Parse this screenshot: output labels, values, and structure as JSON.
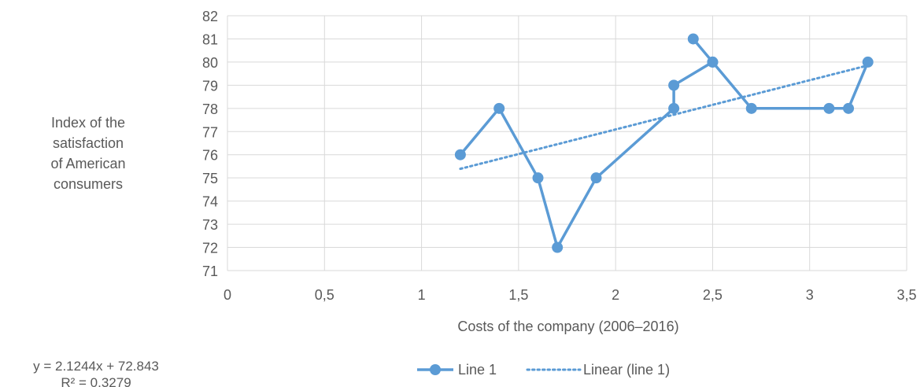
{
  "chart_data": {
    "type": "line",
    "ylabel_lines": [
      "Index of the",
      "satisfaction",
      "of American",
      "consumers"
    ],
    "xlabel": "Costs of the company (2006–2016)",
    "xlim": [
      0,
      3.5
    ],
    "ylim": [
      71,
      82
    ],
    "x_ticks": [
      0,
      0.5,
      1,
      1.5,
      2,
      2.5,
      3,
      3.5
    ],
    "x_tick_labels": [
      "0",
      "0,5",
      "1",
      "1,5",
      "2",
      "2,5",
      "3",
      "3,5"
    ],
    "y_ticks": [
      71,
      72,
      73,
      74,
      75,
      76,
      77,
      78,
      79,
      80,
      81,
      82
    ],
    "y_tick_labels": [
      "71",
      "72",
      "73",
      "74",
      "75",
      "76",
      "77",
      "78",
      "79",
      "80",
      "81",
      "82"
    ],
    "grid": true,
    "series": [
      {
        "name": "Line 1",
        "color": "#5b9bd5",
        "points": [
          [
            1.2,
            76
          ],
          [
            1.4,
            78
          ],
          [
            1.6,
            75
          ],
          [
            1.7,
            72
          ],
          [
            1.9,
            75
          ],
          [
            2.3,
            78
          ],
          [
            2.3,
            79
          ],
          [
            2.5,
            80
          ],
          [
            2.4,
            81
          ],
          [
            2.5,
            80
          ],
          [
            2.7,
            78
          ],
          [
            3.1,
            78
          ],
          [
            3.2,
            78
          ],
          [
            3.3,
            80
          ]
        ]
      }
    ],
    "trendline": {
      "name": "Linear (line 1)",
      "color": "#5b9bd5",
      "slope": 2.1244,
      "intercept": 72.843,
      "x_range": [
        1.2,
        3.3
      ],
      "equation": "y = 2.1244x + 72.843",
      "r_squared": "R² = 0.3279"
    },
    "legend_position": "bottom"
  }
}
